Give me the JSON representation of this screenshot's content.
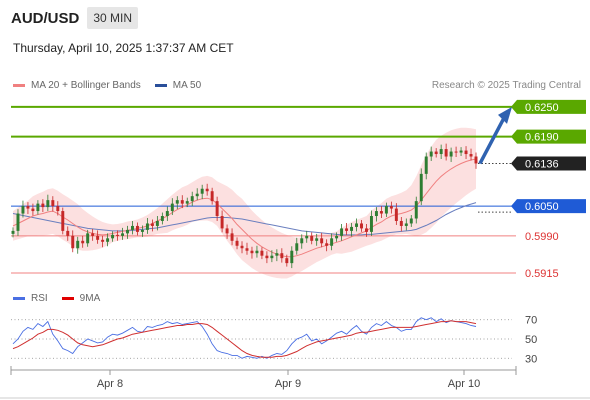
{
  "header": {
    "pair": "AUD/USD",
    "timeframe": "30 MIN",
    "datetime": "Thursday, April 10, 2025 1:37:37 AM CET"
  },
  "legend": {
    "ma20_label": "MA 20 + Bollinger Bands",
    "ma50_label": "MA 50",
    "copyright": "Research © 2025 Trading Central"
  },
  "rsi_legend": {
    "rsi_label": "RSI",
    "ma_label": "9MA"
  },
  "colors": {
    "up": "#2e7d32",
    "down": "#c62828",
    "resistance": "#5aa800",
    "support": "#f08080",
    "pivot": "#1f5bd6",
    "bollinger": "#fbd5d5",
    "ma20": "#f08080",
    "ma50": "#6a7fbf",
    "rsi": "#4a6fe3",
    "rsi_ma": "#d03030",
    "arrow": "#2f62b0",
    "current": "#222222"
  },
  "chart_data": [
    {
      "type": "candlestick",
      "title": "AUD/USD",
      "timeframe": "30 MIN",
      "ylim": [
        0.5905,
        0.6268
      ],
      "x_ticks": [
        "Apr 8",
        "Apr 9",
        "Apr 10"
      ],
      "levels": [
        {
          "value": 0.625,
          "label": "0.6250",
          "kind": "resistance"
        },
        {
          "value": 0.619,
          "label": "0.6190",
          "kind": "resistance"
        },
        {
          "value": 0.6136,
          "label": "0.6136",
          "kind": "current"
        },
        {
          "value": 0.605,
          "label": "0.6050",
          "kind": "pivot"
        },
        {
          "value": 0.599,
          "label": "0.5990",
          "kind": "support"
        },
        {
          "value": 0.5915,
          "label": "0.5915",
          "kind": "support"
        }
      ],
      "target_arrow": {
        "from": 0.6136,
        "to": 0.625
      },
      "close": [
        0.6,
        0.6035,
        0.605,
        0.6045,
        0.604,
        0.6055,
        0.6048,
        0.6062,
        0.605,
        0.604,
        0.6,
        0.599,
        0.5965,
        0.598,
        0.5975,
        0.5995,
        0.599,
        0.5982,
        0.5978,
        0.5985,
        0.5992,
        0.599,
        0.5995,
        0.6002,
        0.601,
        0.5998,
        0.6002,
        0.6015,
        0.601,
        0.602,
        0.603,
        0.604,
        0.6055,
        0.6062,
        0.6055,
        0.606,
        0.607,
        0.6075,
        0.6085,
        0.608,
        0.606,
        0.603,
        0.6005,
        0.5995,
        0.598,
        0.597,
        0.5965,
        0.596,
        0.5955,
        0.596,
        0.595,
        0.5945,
        0.595,
        0.5955,
        0.5945,
        0.5935,
        0.596,
        0.5975,
        0.5985,
        0.599,
        0.598,
        0.5985,
        0.5975,
        0.597,
        0.5985,
        0.599,
        0.6005,
        0.6,
        0.6008,
        0.6015,
        0.6005,
        0.5998,
        0.603,
        0.604,
        0.6035,
        0.605,
        0.6045,
        0.602,
        0.601,
        0.6015,
        0.6025,
        0.606,
        0.6115,
        0.615,
        0.616,
        0.6155,
        0.6165,
        0.615,
        0.616,
        0.6158,
        0.6162,
        0.6155,
        0.615,
        0.6136
      ],
      "ma20": [
        0.601,
        0.6015,
        0.602,
        0.6025,
        0.603,
        0.6033,
        0.6035,
        0.6038,
        0.604,
        0.6035,
        0.6028,
        0.6022,
        0.6015,
        0.6008,
        0.6002,
        0.5998,
        0.5995,
        0.5993,
        0.5992,
        0.5993,
        0.5995,
        0.5997,
        0.5999,
        0.6001,
        0.6003,
        0.6005,
        0.6007,
        0.601,
        0.6015,
        0.602,
        0.6025,
        0.603,
        0.6037,
        0.6043,
        0.6048,
        0.6052,
        0.6058,
        0.6062,
        0.6065,
        0.6066,
        0.6063,
        0.6055,
        0.6045,
        0.6035,
        0.6025,
        0.6013,
        0.6003,
        0.5993,
        0.5983,
        0.5975,
        0.5968,
        0.5962,
        0.5957,
        0.5953,
        0.595,
        0.5948,
        0.5948,
        0.595,
        0.5953,
        0.5957,
        0.5961,
        0.5965,
        0.5968,
        0.5971,
        0.5974,
        0.5977,
        0.598,
        0.5984,
        0.5988,
        0.5992,
        0.5996,
        0.6,
        0.6007,
        0.6013,
        0.6018,
        0.6025,
        0.603,
        0.6033,
        0.6035,
        0.6038,
        0.6042,
        0.605,
        0.6062,
        0.6075,
        0.6088,
        0.61,
        0.611,
        0.6118,
        0.6125,
        0.6131,
        0.6136,
        0.614,
        0.6143,
        0.6145
      ],
      "ma50": [
        0.6035,
        0.6033,
        0.6031,
        0.6029,
        0.6027,
        0.6025,
        0.6023,
        0.6021,
        0.6019,
        0.6017,
        0.6015,
        0.6013,
        0.6011,
        0.6009,
        0.6007,
        0.6005,
        0.6004,
        0.6003,
        0.6002,
        0.6001,
        0.6,
        0.6,
        0.6,
        0.6,
        0.6001,
        0.6002,
        0.6003,
        0.6004,
        0.6005,
        0.6006,
        0.6008,
        0.601,
        0.6012,
        0.6014,
        0.6016,
        0.6018,
        0.602,
        0.6022,
        0.6024,
        0.6026,
        0.6027,
        0.6027,
        0.6027,
        0.6027,
        0.6026,
        0.6025,
        0.6024,
        0.6022,
        0.602,
        0.6018,
        0.6016,
        0.6014,
        0.6012,
        0.601,
        0.6008,
        0.6006,
        0.6004,
        0.6002,
        0.6,
        0.5999,
        0.5998,
        0.5997,
        0.5996,
        0.5995,
        0.5994,
        0.5993,
        0.5992,
        0.5992,
        0.5992,
        0.5992,
        0.5992,
        0.5993,
        0.5993,
        0.5994,
        0.5995,
        0.5996,
        0.5997,
        0.5998,
        0.5999,
        0.6,
        0.6001,
        0.6003,
        0.6007,
        0.6011,
        0.6016,
        0.6021,
        0.6027,
        0.6033,
        0.6038,
        0.6043,
        0.6047,
        0.6051,
        0.6054,
        0.6057
      ],
      "bb_halfwidth": [
        0.003,
        0.0032,
        0.0034,
        0.0036,
        0.004,
        0.0042,
        0.0044,
        0.0046,
        0.0046,
        0.0046,
        0.0046,
        0.0046,
        0.0046,
        0.0046,
        0.0042,
        0.0038,
        0.0034,
        0.003,
        0.0026,
        0.0022,
        0.0018,
        0.0017,
        0.0017,
        0.0018,
        0.0018,
        0.0018,
        0.002,
        0.0022,
        0.0024,
        0.0026,
        0.003,
        0.0034,
        0.0036,
        0.0038,
        0.004,
        0.004,
        0.004,
        0.0042,
        0.0044,
        0.0045,
        0.0045,
        0.0045,
        0.005,
        0.0055,
        0.0058,
        0.006,
        0.0062,
        0.006,
        0.0058,
        0.0056,
        0.0054,
        0.0052,
        0.005,
        0.0048,
        0.0046,
        0.0044,
        0.004,
        0.0036,
        0.0034,
        0.0032,
        0.003,
        0.0028,
        0.0026,
        0.0024,
        0.0022,
        0.0022,
        0.0026,
        0.0028,
        0.003,
        0.003,
        0.003,
        0.003,
        0.0034,
        0.0036,
        0.0038,
        0.004,
        0.004,
        0.004,
        0.0042,
        0.0044,
        0.005,
        0.006,
        0.007,
        0.0078,
        0.0082,
        0.0084,
        0.0082,
        0.008,
        0.0078,
        0.0075,
        0.0072,
        0.0068,
        0.0064,
        0.006
      ]
    },
    {
      "type": "line",
      "title": "RSI",
      "ylim": [
        22,
        78
      ],
      "yticks": [
        70,
        50,
        30
      ],
      "series": [
        {
          "name": "RSI",
          "values": [
            45,
            50,
            58,
            62,
            60,
            66,
            63,
            68,
            55,
            48,
            40,
            38,
            35,
            42,
            46,
            50,
            48,
            46,
            47,
            52,
            55,
            54,
            56,
            59,
            62,
            58,
            57,
            63,
            62,
            64,
            65,
            68,
            66,
            67,
            65,
            66,
            67,
            68,
            63,
            55,
            45,
            38,
            36,
            35,
            33,
            33,
            30,
            32,
            31,
            30,
            32,
            30,
            33,
            35,
            34,
            38,
            45,
            50,
            52,
            55,
            48,
            50,
            45,
            48,
            52,
            56,
            58,
            55,
            60,
            64,
            58,
            55,
            62,
            66,
            64,
            68,
            64,
            62,
            58,
            60,
            60,
            68,
            72,
            70,
            72,
            68,
            71,
            67,
            69,
            68,
            67,
            66,
            64,
            63
          ]
        },
        {
          "name": "9MA",
          "values": [
            40,
            42,
            45,
            48,
            51,
            55,
            57,
            60,
            60,
            59,
            57,
            54,
            50,
            46,
            44,
            43,
            42,
            43,
            44,
            46,
            48,
            50,
            51,
            53,
            55,
            56,
            57,
            58,
            59,
            60,
            61,
            62,
            63,
            64,
            64,
            65,
            65,
            66,
            66,
            65,
            62,
            58,
            54,
            50,
            46,
            42,
            38,
            35,
            33,
            32,
            31,
            31,
            31,
            32,
            32,
            33,
            35,
            37,
            40,
            43,
            45,
            47,
            48,
            49,
            50,
            51,
            52,
            53,
            54,
            56,
            57,
            57,
            58,
            59,
            60,
            61,
            62,
            62,
            62,
            62,
            62,
            63,
            64,
            65,
            66,
            67,
            68,
            68,
            69,
            68,
            68,
            68,
            67,
            66
          ]
        }
      ]
    }
  ]
}
